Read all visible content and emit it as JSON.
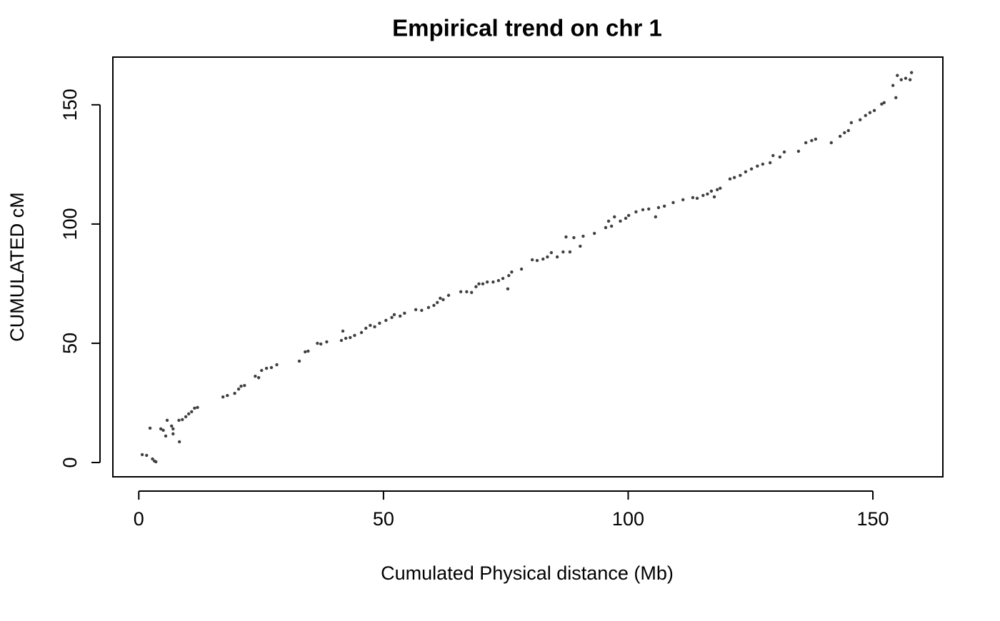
{
  "chart_data": {
    "type": "scatter",
    "title": "Empirical trend on chr  1",
    "xlabel": "Cumulated Physical distance (Mb)",
    "ylabel": "CUMULATED cM",
    "color": "#404040",
    "xlim": [
      -5.3,
      164.3
    ],
    "ylim": [
      -6,
      170
    ],
    "xticks": [
      0,
      50,
      100,
      150
    ],
    "yticks": [
      0,
      50,
      100,
      150
    ],
    "x": [
      0.7,
      1.6,
      2.3,
      2.8,
      3.2,
      3.5,
      4.5,
      5.0,
      5.5,
      5.8,
      6.7,
      7.0,
      7.0,
      8.3,
      8.2,
      8.9,
      9.6,
      10.2,
      10.8,
      11.4,
      12.0,
      17.2,
      18.1,
      19.6,
      20.4,
      20.9,
      21.6,
      23.8,
      24.5,
      25.1,
      26.1,
      27.1,
      28.2,
      32.8,
      34.0,
      34.6,
      36.5,
      37.2,
      38.4,
      41.4,
      41.7,
      42.3,
      43.2,
      44.1,
      45.5,
      46.4,
      47.3,
      48.2,
      49.2,
      50.5,
      51.7,
      52.2,
      53.4,
      54.3,
      56.6,
      57.8,
      59.2,
      60.3,
      61.0,
      61.6,
      62.2,
      63.3,
      65.8,
      67.0,
      68.0,
      68.9,
      69.5,
      70.3,
      71.2,
      72.4,
      73.5,
      74.4,
      75.4,
      75.6,
      76.2,
      78.2,
      80.4,
      81.4,
      82.6,
      83.5,
      84.3,
      85.5,
      86.7,
      87.3,
      88.1,
      88.9,
      90.2,
      90.8,
      93.1,
      95.4,
      96.0,
      96.6,
      97.2,
      98.4,
      99.5,
      100.1,
      101.6,
      103.0,
      104.2,
      105.6,
      106.2,
      107.4,
      109.2,
      111.2,
      113.2,
      114.1,
      115.3,
      116.2,
      117.0,
      117.6,
      118.2,
      118.8,
      120.8,
      121.7,
      122.9,
      124.0,
      125.2,
      126.4,
      127.5,
      129.0,
      129.6,
      131.0,
      131.9,
      134.8,
      136.3,
      137.5,
      138.3,
      141.5,
      143.3,
      144.2,
      145.0,
      145.6,
      147.4,
      148.5,
      149.4,
      150.3,
      151.8,
      152.3,
      154.1,
      154.7,
      155.0,
      155.8,
      156.7,
      157.6,
      157.9
    ],
    "values": [
      3.3,
      3.0,
      14.4,
      1.5,
      0.6,
      0.3,
      14.1,
      13.5,
      11.1,
      17.7,
      15.3,
      14.1,
      12.0,
      8.7,
      17.7,
      18.0,
      19.2,
      20.4,
      21.3,
      22.8,
      23.1,
      27.5,
      28.1,
      29.0,
      30.8,
      32.0,
      32.3,
      36.2,
      35.6,
      38.6,
      39.5,
      39.8,
      41.0,
      42.5,
      46.4,
      46.7,
      50.0,
      49.7,
      50.6,
      51.2,
      55.1,
      52.1,
      52.4,
      53.3,
      54.5,
      56.3,
      57.5,
      56.9,
      58.4,
      59.6,
      60.8,
      62.0,
      61.4,
      62.6,
      64.1,
      63.8,
      65.0,
      65.9,
      67.1,
      68.9,
      68.3,
      70.1,
      71.6,
      71.6,
      71.3,
      73.7,
      74.9,
      74.9,
      75.7,
      75.7,
      76.3,
      77.2,
      72.8,
      78.4,
      79.9,
      81.1,
      85.0,
      84.7,
      85.3,
      86.2,
      88.0,
      86.2,
      88.3,
      94.6,
      88.3,
      94.3,
      90.7,
      94.9,
      96.1,
      98.5,
      101.2,
      99.1,
      103.0,
      101.2,
      102.4,
      103.6,
      105.1,
      106.0,
      106.3,
      103.0,
      106.9,
      107.5,
      109.0,
      110.2,
      111.1,
      110.8,
      112.0,
      112.6,
      113.8,
      111.4,
      114.4,
      115.0,
      118.9,
      119.5,
      120.4,
      121.9,
      123.1,
      124.3,
      125.1,
      125.7,
      128.7,
      128.1,
      130.2,
      130.5,
      134.1,
      135.0,
      135.6,
      134.1,
      136.8,
      138.3,
      139.2,
      142.5,
      143.7,
      145.5,
      146.7,
      147.6,
      150.3,
      150.9,
      158.1,
      153.0,
      162.3,
      160.5,
      161.1,
      160.5,
      163.5
    ]
  }
}
